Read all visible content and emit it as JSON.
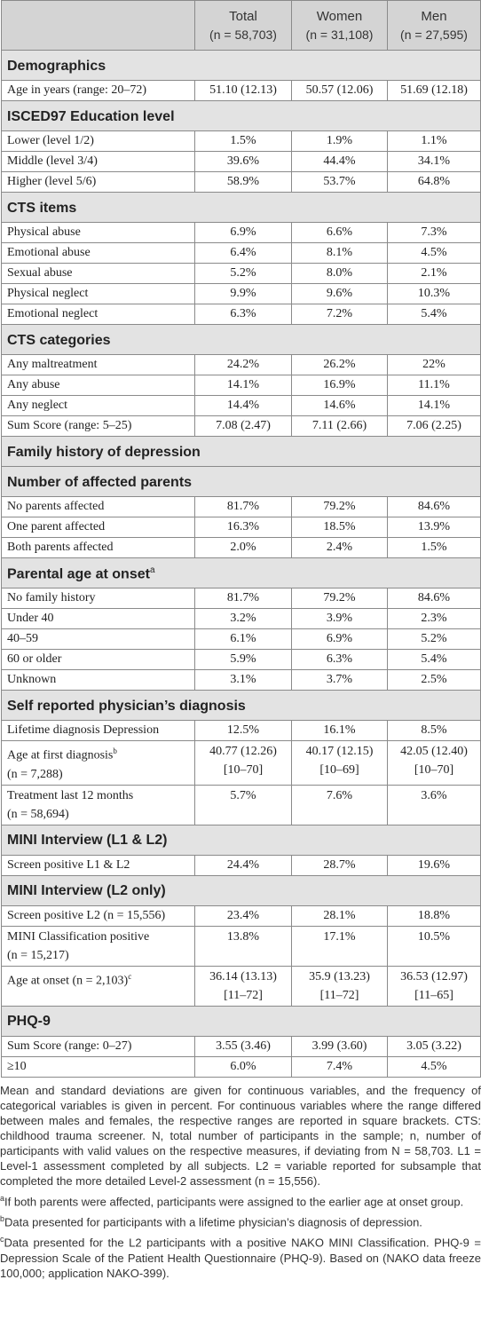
{
  "header": {
    "col_total": "Total",
    "col_total_n": "(n = 58,703)",
    "col_women": "Women",
    "col_women_n": "(n = 31,108)",
    "col_men": "Men",
    "col_men_n": "(n = 27,595)"
  },
  "sections": {
    "demographics": "Demographics",
    "education": "ISCED97 Education level",
    "cts_items": "CTS items",
    "cts_categories": "CTS categories",
    "family_history": "Family history of depression",
    "affected_parents": "Number of affected parents",
    "parental_age": "Parental age at onset",
    "parental_age_sup": "a",
    "self_reported": "Self reported physician’s diagnosis",
    "mini_l1l2": "MINI Interview (L1 & L2)",
    "mini_l2": "MINI Interview (L2 only)",
    "phq9": "PHQ-9"
  },
  "rows": {
    "age": {
      "label": "Age in years (range: 20–72)",
      "total": "51.10 (12.13)",
      "women": "50.57 (12.06)",
      "men": "51.69 (12.18)"
    },
    "edu_lower": {
      "label": "Lower (level 1/2)",
      "total": "1.5%",
      "women": "1.9%",
      "men": "1.1%"
    },
    "edu_middle": {
      "label": "Middle (level 3/4)",
      "total": "39.6%",
      "women": "44.4%",
      "men": "34.1%"
    },
    "edu_higher": {
      "label": "Higher (level 5/6)",
      "total": "58.9%",
      "women": "53.7%",
      "men": "64.8%"
    },
    "phys_abuse": {
      "label": "Physical abuse",
      "total": "6.9%",
      "women": "6.6%",
      "men": "7.3%"
    },
    "emo_abuse": {
      "label": "Emotional abuse",
      "total": "6.4%",
      "women": "8.1%",
      "men": "4.5%"
    },
    "sex_abuse": {
      "label": "Sexual abuse",
      "total": "5.2%",
      "women": "8.0%",
      "men": "2.1%"
    },
    "phys_neglect": {
      "label": "Physical neglect",
      "total": "9.9%",
      "women": "9.6%",
      "men": "10.3%"
    },
    "emo_neglect": {
      "label": "Emotional neglect",
      "total": "6.3%",
      "women": "7.2%",
      "men": "5.4%"
    },
    "any_maltreat": {
      "label": "Any maltreatment",
      "total": "24.2%",
      "women": "26.2%",
      "men": "22%"
    },
    "any_abuse": {
      "label": "Any abuse",
      "total": "14.1%",
      "women": "16.9%",
      "men": "11.1%"
    },
    "any_neglect": {
      "label": "Any neglect",
      "total": "14.4%",
      "women": "14.6%",
      "men": "14.1%"
    },
    "cts_sum": {
      "label": "Sum Score (range: 5–25)",
      "total": "7.08 (2.47)",
      "women": "7.11 (2.66)",
      "men": "7.06 (2.25)"
    },
    "no_parents": {
      "label": "No parents affected",
      "total": "81.7%",
      "women": "79.2%",
      "men": "84.6%"
    },
    "one_parent": {
      "label": "One parent affected",
      "total": "16.3%",
      "women": "18.5%",
      "men": "13.9%"
    },
    "both_parents": {
      "label": "Both parents affected",
      "total": "2.0%",
      "women": "2.4%",
      "men": "1.5%"
    },
    "no_history": {
      "label": "No family history",
      "total": "81.7%",
      "women": "79.2%",
      "men": "84.6%"
    },
    "under40": {
      "label": "Under 40",
      "total": "3.2%",
      "women": "3.9%",
      "men": "2.3%"
    },
    "age40_59": {
      "label": "40–59",
      "total": "6.1%",
      "women": "6.9%",
      "men": "5.2%"
    },
    "age60": {
      "label": "60 or older",
      "total": "5.9%",
      "women": "6.3%",
      "men": "5.4%"
    },
    "unknown": {
      "label": "Unknown",
      "total": "3.1%",
      "women": "3.7%",
      "men": "2.5%"
    },
    "lifetime_dx": {
      "label": "Lifetime diagnosis Depression",
      "total": "12.5%",
      "women": "16.1%",
      "men": "8.5%"
    },
    "age_first_dx": {
      "label": "Age at first diagnosis",
      "label_sup": "b",
      "label2": "(n = 7,288)",
      "total": "40.77 (12.26)",
      "women": "40.17 (12.15)",
      "men": "42.05 (12.40)",
      "total_range": "[10–70]",
      "women_range": "[10–69]",
      "men_range": "[10–70]"
    },
    "treatment": {
      "label": "Treatment last 12 months",
      "label2": "(n = 58,694)",
      "total": "5.7%",
      "women": "7.6%",
      "men": "3.6%"
    },
    "screen_l1l2": {
      "label": "Screen positive L1 & L2",
      "total": "24.4%",
      "women": "28.7%",
      "men": "19.6%"
    },
    "screen_l2": {
      "label": "Screen positive L2 (n = 15,556)",
      "total": "23.4%",
      "women": "28.1%",
      "men": "18.8%"
    },
    "mini_class": {
      "label": "MINI Classification positive",
      "label2": "(n = 15,217)",
      "total": "13.8%",
      "women": "17.1%",
      "men": "10.5%"
    },
    "age_onset": {
      "label": "Age at onset (n = 2,103)",
      "label_sup": "c",
      "total": "36.14 (13.13)",
      "women": "35.9 (13.23)",
      "men": "36.53 (12.97)",
      "total_range": "[11–72]",
      "women_range": "[11–72]",
      "men_range": "[11–65]"
    },
    "phq_sum": {
      "label": "Sum Score (range: 0–27)",
      "total": "3.55 (3.46)",
      "women": "3.99 (3.60)",
      "men": "3.05 (3.22)"
    },
    "phq_ge10": {
      "label": "≥10",
      "total": "6.0%",
      "women": "7.4%",
      "men": "4.5%"
    }
  },
  "footnotes": {
    "main": "Mean and standard deviations are given for continuous variables, and the frequency of categorical variables is given in percent. For continuous variables where the range differed between males and females, the respective ranges are reported in square brackets. CTS: childhood trauma screener. N, total number of participants in the sample; n, number of participants with valid values on the respective measures, if deviating from N = 58,703. L1 = Level-1 assessment completed by all subjects. L2 = variable reported for subsample that completed the more detailed Level-2 assessment (n = 15,556).",
    "a_mark": "a",
    "a": "If both parents were affected, participants were assigned to the earlier age at onset group.",
    "b_mark": "b",
    "b": "Data presented for participants with a lifetime physician’s diagnosis of depression.",
    "c_mark": "c",
    "c": "Data presented for the L2 participants with a positive NAKO MINI Classification. PHQ-9 = Depression Scale of the Patient Health Questionnaire (PHQ-9). Based on (NAKO data freeze 100,000; application NAKO-399)."
  }
}
